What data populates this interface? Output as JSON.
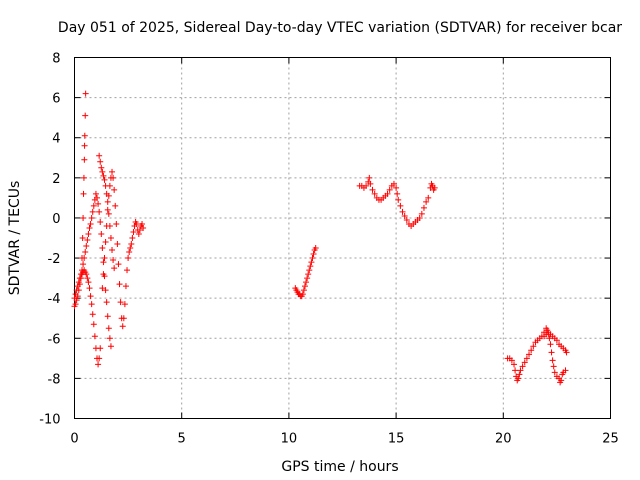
{
  "chart_data": {
    "type": "scatter",
    "title": "Day 051 of 2025, Sidereal Day-to-day VTEC variation (SDTVAR) for receiver bcar",
    "xlabel": "GPS time / hours",
    "ylabel": "SDTVAR / TECUs",
    "xlim": [
      0,
      25
    ],
    "ylim": [
      -10,
      8
    ],
    "xticks": [
      0,
      5,
      10,
      15,
      20,
      25
    ],
    "yticks": [
      -10,
      -8,
      -6,
      -4,
      -2,
      0,
      2,
      4,
      6,
      8
    ],
    "xtick_labels": [
      "0",
      "5",
      "10",
      "15",
      "20",
      "25"
    ],
    "ytick_labels": [
      "-10",
      "-8",
      "-6",
      "-4",
      "-2",
      "0",
      "2",
      "4",
      "6",
      "8"
    ],
    "grid": true,
    "marker": "+",
    "color": "#ff0000",
    "series": [
      {
        "points": [
          [
            0.0,
            -4.4
          ],
          [
            0.05,
            -4.3
          ],
          [
            0.1,
            -4.1
          ],
          [
            0.15,
            -3.9
          ],
          [
            0.2,
            -3.6
          ],
          [
            0.25,
            -3.3
          ],
          [
            0.3,
            -3.0
          ],
          [
            0.35,
            -2.8
          ],
          [
            0.4,
            -2.7
          ],
          [
            0.45,
            -2.6
          ],
          [
            0.5,
            -2.7
          ],
          [
            0.55,
            -2.8
          ],
          [
            0.6,
            -3.0
          ],
          [
            0.65,
            -3.2
          ],
          [
            0.7,
            -3.5
          ],
          [
            0.75,
            -3.9
          ],
          [
            0.8,
            -4.3
          ],
          [
            0.85,
            -4.8
          ],
          [
            0.9,
            -5.3
          ],
          [
            0.95,
            -5.9
          ],
          [
            1.0,
            -6.5
          ],
          [
            1.05,
            -7.0
          ],
          [
            1.1,
            -7.3
          ],
          [
            1.15,
            -7.0
          ],
          [
            1.2,
            -6.5
          ],
          [
            0.0,
            -4.0
          ],
          [
            0.05,
            -3.8
          ],
          [
            0.1,
            -3.6
          ],
          [
            0.15,
            -3.4
          ],
          [
            0.2,
            -3.2
          ],
          [
            0.25,
            -3.0
          ],
          [
            0.3,
            -2.8
          ],
          [
            0.35,
            -2.6
          ],
          [
            0.4,
            -2.3
          ],
          [
            0.45,
            -2.0
          ],
          [
            0.5,
            -1.7
          ],
          [
            0.55,
            -1.4
          ],
          [
            0.6,
            -1.1
          ],
          [
            0.65,
            -0.8
          ],
          [
            0.7,
            -0.5
          ],
          [
            0.75,
            -0.3
          ],
          [
            0.8,
            0.0
          ],
          [
            0.85,
            0.3
          ],
          [
            0.9,
            0.6
          ],
          [
            0.95,
            0.9
          ],
          [
            1.0,
            1.2
          ],
          [
            1.05,
            1.0
          ],
          [
            1.1,
            0.7
          ],
          [
            1.15,
            0.3
          ],
          [
            1.2,
            -0.2
          ],
          [
            1.25,
            -0.8
          ],
          [
            1.3,
            -1.5
          ],
          [
            1.35,
            -2.2
          ],
          [
            1.4,
            -2.9
          ],
          [
            1.45,
            -3.6
          ],
          [
            1.5,
            -4.2
          ],
          [
            1.55,
            -4.9
          ],
          [
            1.6,
            -5.5
          ],
          [
            1.65,
            -6.0
          ],
          [
            1.7,
            -6.4
          ],
          [
            0.35,
            -2.0
          ],
          [
            0.38,
            -1.0
          ],
          [
            0.4,
            0.0
          ],
          [
            0.42,
            1.2
          ],
          [
            0.44,
            2.0
          ],
          [
            0.46,
            2.9
          ],
          [
            0.47,
            3.6
          ],
          [
            0.48,
            4.1
          ],
          [
            0.5,
            5.1
          ],
          [
            0.52,
            6.2
          ],
          [
            1.15,
            3.1
          ],
          [
            1.2,
            2.8
          ],
          [
            1.25,
            2.5
          ],
          [
            1.3,
            2.3
          ],
          [
            1.35,
            2.1
          ],
          [
            1.4,
            1.9
          ],
          [
            1.45,
            1.6
          ],
          [
            1.5,
            1.2
          ],
          [
            1.55,
            0.8
          ],
          [
            1.6,
            0.2
          ],
          [
            1.65,
            -0.4
          ],
          [
            1.7,
            -1.0
          ],
          [
            1.75,
            -1.6
          ],
          [
            1.8,
            -2.1
          ],
          [
            1.85,
            -2.5
          ],
          [
            1.3,
            -3.5
          ],
          [
            1.35,
            -2.8
          ],
          [
            1.4,
            -2.0
          ],
          [
            1.45,
            -1.2
          ],
          [
            1.5,
            -0.4
          ],
          [
            1.55,
            0.4
          ],
          [
            1.6,
            1.1
          ],
          [
            1.65,
            1.6
          ],
          [
            1.7,
            2.0
          ],
          [
            1.75,
            2.3
          ],
          [
            1.8,
            2.0
          ],
          [
            1.85,
            1.4
          ],
          [
            1.9,
            0.6
          ],
          [
            1.95,
            -0.3
          ],
          [
            2.0,
            -1.3
          ],
          [
            2.05,
            -2.3
          ],
          [
            2.1,
            -3.3
          ],
          [
            2.15,
            -4.2
          ],
          [
            2.2,
            -5.0
          ],
          [
            2.25,
            -5.4
          ],
          [
            2.3,
            -5.0
          ],
          [
            2.35,
            -4.3
          ],
          [
            2.4,
            -3.4
          ],
          [
            2.45,
            -2.6
          ],
          [
            2.5,
            -2.0
          ],
          [
            2.55,
            -1.7
          ],
          [
            2.6,
            -1.5
          ],
          [
            2.65,
            -1.3
          ],
          [
            2.7,
            -1.0
          ],
          [
            2.75,
            -0.7
          ],
          [
            2.8,
            -0.4
          ],
          [
            2.85,
            -0.2
          ],
          [
            2.9,
            -0.3
          ],
          [
            2.95,
            -0.6
          ],
          [
            3.0,
            -0.8
          ],
          [
            3.05,
            -0.6
          ],
          [
            3.1,
            -0.4
          ],
          [
            3.15,
            -0.3
          ],
          [
            3.2,
            -0.5
          ],
          [
            10.3,
            -3.5
          ],
          [
            10.35,
            -3.6
          ],
          [
            10.4,
            -3.7
          ],
          [
            10.45,
            -3.8
          ],
          [
            10.5,
            -3.8
          ],
          [
            10.55,
            -3.9
          ],
          [
            10.6,
            -3.9
          ],
          [
            10.65,
            -3.8
          ],
          [
            10.7,
            -3.6
          ],
          [
            10.75,
            -3.4
          ],
          [
            10.8,
            -3.2
          ],
          [
            10.85,
            -3.0
          ],
          [
            10.9,
            -2.8
          ],
          [
            10.95,
            -2.6
          ],
          [
            11.0,
            -2.4
          ],
          [
            11.05,
            -2.2
          ],
          [
            11.1,
            -2.0
          ],
          [
            11.15,
            -1.8
          ],
          [
            11.2,
            -1.6
          ],
          [
            11.25,
            -1.5
          ],
          [
            13.3,
            1.6
          ],
          [
            13.4,
            1.6
          ],
          [
            13.5,
            1.5
          ],
          [
            13.6,
            1.6
          ],
          [
            13.7,
            1.8
          ],
          [
            13.75,
            2.0
          ],
          [
            13.8,
            1.7
          ],
          [
            13.9,
            1.4
          ],
          [
            14.0,
            1.2
          ],
          [
            14.1,
            1.0
          ],
          [
            14.2,
            0.9
          ],
          [
            14.3,
            0.9
          ],
          [
            14.4,
            1.0
          ],
          [
            14.5,
            1.1
          ],
          [
            14.6,
            1.2
          ],
          [
            14.7,
            1.4
          ],
          [
            14.8,
            1.6
          ],
          [
            14.9,
            1.7
          ],
          [
            15.0,
            1.5
          ],
          [
            15.05,
            1.2
          ],
          [
            15.1,
            0.9
          ],
          [
            15.2,
            0.6
          ],
          [
            15.3,
            0.3
          ],
          [
            15.4,
            0.1
          ],
          [
            15.5,
            -0.1
          ],
          [
            15.6,
            -0.3
          ],
          [
            15.7,
            -0.4
          ],
          [
            15.8,
            -0.3
          ],
          [
            15.9,
            -0.2
          ],
          [
            16.0,
            -0.1
          ],
          [
            16.1,
            0.0
          ],
          [
            16.2,
            0.2
          ],
          [
            16.3,
            0.5
          ],
          [
            16.4,
            0.8
          ],
          [
            16.5,
            1.0
          ],
          [
            16.6,
            1.5
          ],
          [
            16.65,
            1.7
          ],
          [
            16.7,
            1.6
          ],
          [
            16.75,
            1.4
          ],
          [
            16.8,
            1.5
          ],
          [
            20.2,
            -7.0
          ],
          [
            20.3,
            -7.0
          ],
          [
            20.4,
            -7.1
          ],
          [
            20.5,
            -7.3
          ],
          [
            20.55,
            -7.6
          ],
          [
            20.6,
            -7.9
          ],
          [
            20.65,
            -8.1
          ],
          [
            20.7,
            -8.0
          ],
          [
            20.75,
            -7.8
          ],
          [
            20.8,
            -7.6
          ],
          [
            20.9,
            -7.4
          ],
          [
            21.0,
            -7.2
          ],
          [
            21.1,
            -7.0
          ],
          [
            21.2,
            -6.8
          ],
          [
            21.3,
            -6.6
          ],
          [
            21.4,
            -6.4
          ],
          [
            21.5,
            -6.2
          ],
          [
            21.6,
            -6.1
          ],
          [
            21.7,
            -6.0
          ],
          [
            21.8,
            -5.9
          ],
          [
            21.9,
            -5.7
          ],
          [
            22.0,
            -5.5
          ],
          [
            22.05,
            -5.6
          ],
          [
            22.1,
            -5.8
          ],
          [
            22.15,
            -6.0
          ],
          [
            22.2,
            -6.3
          ],
          [
            22.25,
            -6.7
          ],
          [
            22.3,
            -7.1
          ],
          [
            22.35,
            -7.4
          ],
          [
            22.4,
            -7.7
          ],
          [
            22.5,
            -7.9
          ],
          [
            22.6,
            -8.0
          ],
          [
            22.65,
            -8.2
          ],
          [
            22.7,
            -8.1
          ],
          [
            22.75,
            -7.8
          ],
          [
            22.8,
            -7.7
          ],
          [
            22.9,
            -7.6
          ],
          [
            21.9,
            -5.9
          ],
          [
            22.0,
            -5.8
          ],
          [
            22.1,
            -5.7
          ],
          [
            22.2,
            -5.8
          ],
          [
            22.3,
            -5.9
          ],
          [
            22.4,
            -6.0
          ],
          [
            22.5,
            -6.1
          ],
          [
            22.6,
            -6.3
          ],
          [
            22.7,
            -6.4
          ],
          [
            22.8,
            -6.5
          ],
          [
            22.9,
            -6.6
          ],
          [
            22.95,
            -6.7
          ]
        ]
      }
    ]
  }
}
